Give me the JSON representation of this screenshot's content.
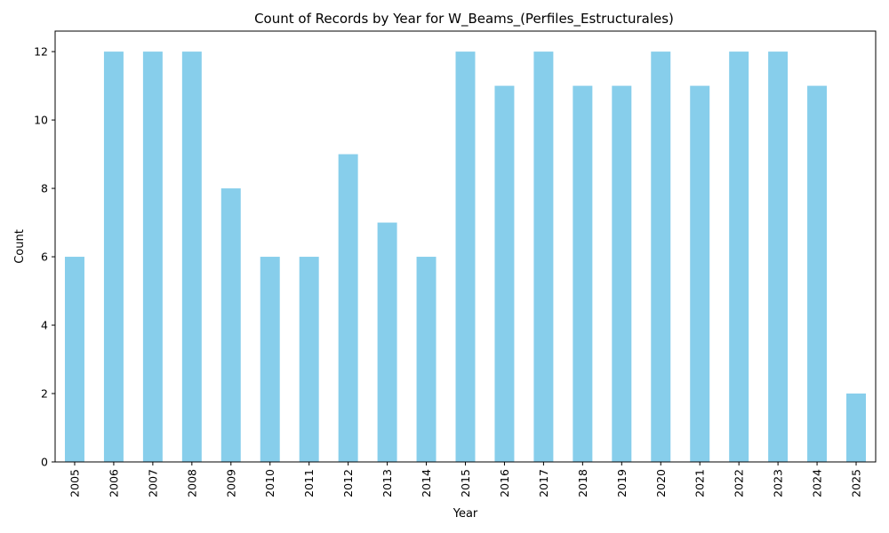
{
  "chart_data": {
    "type": "bar",
    "title": "Count of Records by Year for W_Beams_(Perfiles_Estructurales)",
    "xlabel": "Year",
    "ylabel": "Count",
    "categories": [
      "2005",
      "2006",
      "2007",
      "2008",
      "2009",
      "2010",
      "2011",
      "2012",
      "2013",
      "2014",
      "2015",
      "2016",
      "2017",
      "2018",
      "2019",
      "2020",
      "2021",
      "2022",
      "2023",
      "2024",
      "2025"
    ],
    "values": [
      6,
      12,
      12,
      12,
      8,
      6,
      6,
      9,
      7,
      6,
      12,
      11,
      12,
      11,
      11,
      12,
      11,
      12,
      12,
      11,
      2
    ],
    "ylim": [
      0,
      12.6
    ],
    "yticks": [
      0,
      2,
      4,
      6,
      8,
      10,
      12
    ],
    "grid": false,
    "legend": "none",
    "bar_color": "#87ceeb",
    "x_tick_rotation": 90
  }
}
